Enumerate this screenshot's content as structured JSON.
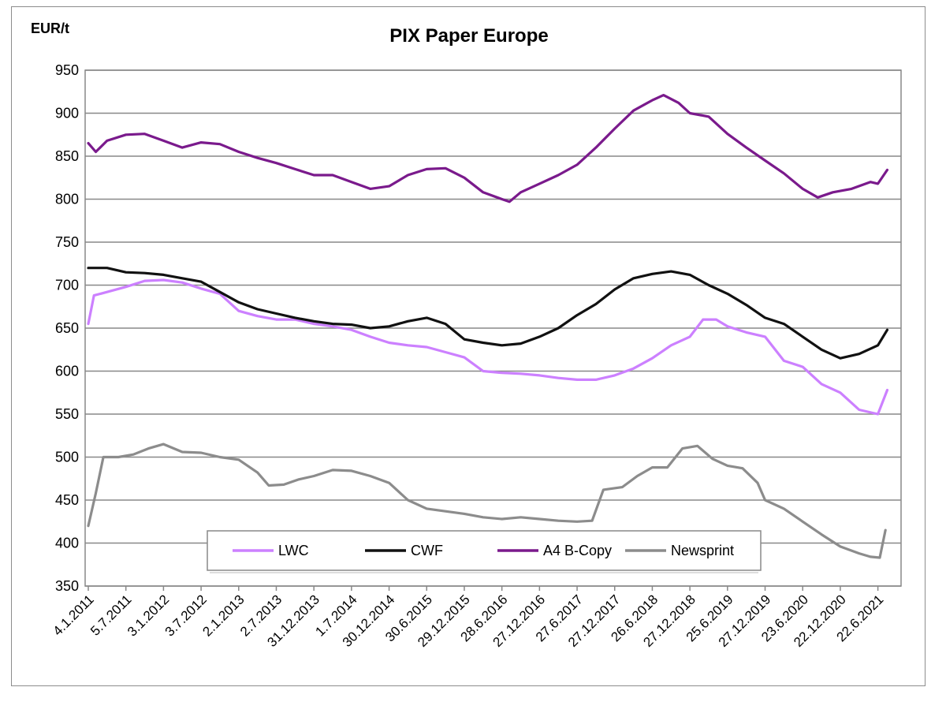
{
  "chart_data": {
    "type": "line",
    "title": "PIX Paper Europe",
    "ylabel": "EUR/t",
    "xlabel": "",
    "ylim": [
      350,
      950
    ],
    "yticks": [
      350,
      400,
      450,
      500,
      550,
      600,
      650,
      700,
      750,
      800,
      850,
      900,
      950
    ],
    "grid": true,
    "legend_position": "bottom-center",
    "categories": [
      "4.1.2011",
      "5.7.2011",
      "3.1.2012",
      "3.7.2012",
      "2.1.2013",
      "2.7.2013",
      "31.12.2013",
      "1.7.2014",
      "30.12.2014",
      "30.6.2015",
      "29.12.2015",
      "28.6.2016",
      "27.12.2016",
      "27.6.2017",
      "27.12.2017",
      "26.6.2018",
      "27.12.2018",
      "25.6.2019",
      "27.12.2019",
      "23.6.2020",
      "22.12.2020",
      "22.6.2021"
    ],
    "series": [
      {
        "name": "LWC",
        "color": "#cc80ff",
        "points": [
          [
            0,
            655
          ],
          [
            0.15,
            688
          ],
          [
            0.5,
            692
          ],
          [
            1.0,
            698
          ],
          [
            1.5,
            705
          ],
          [
            2.0,
            706
          ],
          [
            2.5,
            703
          ],
          [
            3.0,
            696
          ],
          [
            3.5,
            690
          ],
          [
            4.0,
            670
          ],
          [
            4.5,
            664
          ],
          [
            5.0,
            660
          ],
          [
            5.5,
            660
          ],
          [
            6.0,
            655
          ],
          [
            6.5,
            652
          ],
          [
            7.0,
            648
          ],
          [
            7.5,
            640
          ],
          [
            8.0,
            633
          ],
          [
            8.5,
            630
          ],
          [
            9.0,
            628
          ],
          [
            9.5,
            622
          ],
          [
            10.0,
            616
          ],
          [
            10.5,
            600
          ],
          [
            11.0,
            598
          ],
          [
            11.5,
            597
          ],
          [
            12.0,
            595
          ],
          [
            12.5,
            592
          ],
          [
            13.0,
            590
          ],
          [
            13.5,
            590
          ],
          [
            14.0,
            595
          ],
          [
            14.5,
            603
          ],
          [
            15.0,
            615
          ],
          [
            15.5,
            630
          ],
          [
            16.0,
            640
          ],
          [
            16.35,
            660
          ],
          [
            16.7,
            660
          ],
          [
            17.0,
            652
          ],
          [
            17.5,
            645
          ],
          [
            18.0,
            640
          ],
          [
            18.5,
            612
          ],
          [
            19.0,
            605
          ],
          [
            19.5,
            585
          ],
          [
            20.0,
            575
          ],
          [
            20.5,
            555
          ],
          [
            21.0,
            550
          ],
          [
            21.25,
            578
          ]
        ]
      },
      {
        "name": "CWF",
        "color": "#111111",
        "points": [
          [
            0,
            720
          ],
          [
            0.5,
            720
          ],
          [
            1.0,
            715
          ],
          [
            1.5,
            714
          ],
          [
            2.0,
            712
          ],
          [
            2.5,
            708
          ],
          [
            3.0,
            704
          ],
          [
            3.5,
            692
          ],
          [
            4.0,
            680
          ],
          [
            4.5,
            672
          ],
          [
            5.0,
            667
          ],
          [
            5.5,
            662
          ],
          [
            6.0,
            658
          ],
          [
            6.5,
            655
          ],
          [
            7.0,
            654
          ],
          [
            7.5,
            650
          ],
          [
            8.0,
            652
          ],
          [
            8.5,
            658
          ],
          [
            9.0,
            662
          ],
          [
            9.5,
            655
          ],
          [
            10.0,
            637
          ],
          [
            10.5,
            633
          ],
          [
            11.0,
            630
          ],
          [
            11.5,
            632
          ],
          [
            12.0,
            640
          ],
          [
            12.5,
            650
          ],
          [
            13.0,
            665
          ],
          [
            13.5,
            678
          ],
          [
            14.0,
            695
          ],
          [
            14.5,
            708
          ],
          [
            15.0,
            713
          ],
          [
            15.5,
            716
          ],
          [
            16.0,
            712
          ],
          [
            16.5,
            700
          ],
          [
            17.0,
            690
          ],
          [
            17.5,
            677
          ],
          [
            18.0,
            662
          ],
          [
            18.5,
            655
          ],
          [
            19.0,
            640
          ],
          [
            19.5,
            625
          ],
          [
            20.0,
            615
          ],
          [
            20.5,
            620
          ],
          [
            21.0,
            630
          ],
          [
            21.25,
            648
          ]
        ]
      },
      {
        "name": "A4 B-Copy",
        "color": "#7a1a8c",
        "points": [
          [
            0,
            865
          ],
          [
            0.2,
            855
          ],
          [
            0.5,
            868
          ],
          [
            1.0,
            875
          ],
          [
            1.5,
            876
          ],
          [
            2.0,
            868
          ],
          [
            2.5,
            860
          ],
          [
            3.0,
            866
          ],
          [
            3.5,
            864
          ],
          [
            4.0,
            855
          ],
          [
            4.5,
            848
          ],
          [
            5.0,
            842
          ],
          [
            5.5,
            835
          ],
          [
            6.0,
            828
          ],
          [
            6.5,
            828
          ],
          [
            7.0,
            820
          ],
          [
            7.5,
            812
          ],
          [
            8.0,
            815
          ],
          [
            8.5,
            828
          ],
          [
            9.0,
            835
          ],
          [
            9.5,
            836
          ],
          [
            10.0,
            825
          ],
          [
            10.5,
            808
          ],
          [
            11.0,
            800
          ],
          [
            11.2,
            797
          ],
          [
            11.5,
            808
          ],
          [
            12.0,
            818
          ],
          [
            12.5,
            828
          ],
          [
            13.0,
            840
          ],
          [
            13.5,
            860
          ],
          [
            14.0,
            882
          ],
          [
            14.5,
            903
          ],
          [
            15.0,
            915
          ],
          [
            15.3,
            921
          ],
          [
            15.7,
            912
          ],
          [
            16.0,
            900
          ],
          [
            16.5,
            896
          ],
          [
            17.0,
            876
          ],
          [
            17.5,
            860
          ],
          [
            18.0,
            845
          ],
          [
            18.5,
            830
          ],
          [
            19.0,
            812
          ],
          [
            19.4,
            802
          ],
          [
            19.8,
            808
          ],
          [
            20.3,
            812
          ],
          [
            20.8,
            820
          ],
          [
            21.0,
            818
          ],
          [
            21.25,
            834
          ]
        ]
      },
      {
        "name": "Newsprint",
        "color": "#8c8c8c",
        "points": [
          [
            0,
            420
          ],
          [
            0.2,
            458
          ],
          [
            0.4,
            500
          ],
          [
            0.8,
            500
          ],
          [
            1.2,
            503
          ],
          [
            1.6,
            510
          ],
          [
            2.0,
            515
          ],
          [
            2.5,
            506
          ],
          [
            3.0,
            505
          ],
          [
            3.5,
            500
          ],
          [
            4.0,
            497
          ],
          [
            4.5,
            482
          ],
          [
            4.8,
            467
          ],
          [
            5.2,
            468
          ],
          [
            5.6,
            474
          ],
          [
            6.0,
            478
          ],
          [
            6.5,
            485
          ],
          [
            7.0,
            484
          ],
          [
            7.5,
            478
          ],
          [
            8.0,
            470
          ],
          [
            8.5,
            450
          ],
          [
            9.0,
            440
          ],
          [
            9.5,
            437
          ],
          [
            10.0,
            434
          ],
          [
            10.5,
            430
          ],
          [
            11.0,
            428
          ],
          [
            11.5,
            430
          ],
          [
            12.0,
            428
          ],
          [
            12.5,
            426
          ],
          [
            13.0,
            425
          ],
          [
            13.4,
            426
          ],
          [
            13.7,
            462
          ],
          [
            14.2,
            465
          ],
          [
            14.6,
            478
          ],
          [
            15.0,
            488
          ],
          [
            15.4,
            488
          ],
          [
            15.8,
            510
          ],
          [
            16.2,
            513
          ],
          [
            16.6,
            498
          ],
          [
            17.0,
            490
          ],
          [
            17.4,
            487
          ],
          [
            17.8,
            470
          ],
          [
            18.0,
            450
          ],
          [
            18.5,
            440
          ],
          [
            19.0,
            425
          ],
          [
            19.5,
            410
          ],
          [
            20.0,
            396
          ],
          [
            20.5,
            388
          ],
          [
            20.8,
            384
          ],
          [
            21.05,
            383
          ],
          [
            21.2,
            415
          ]
        ]
      }
    ]
  }
}
